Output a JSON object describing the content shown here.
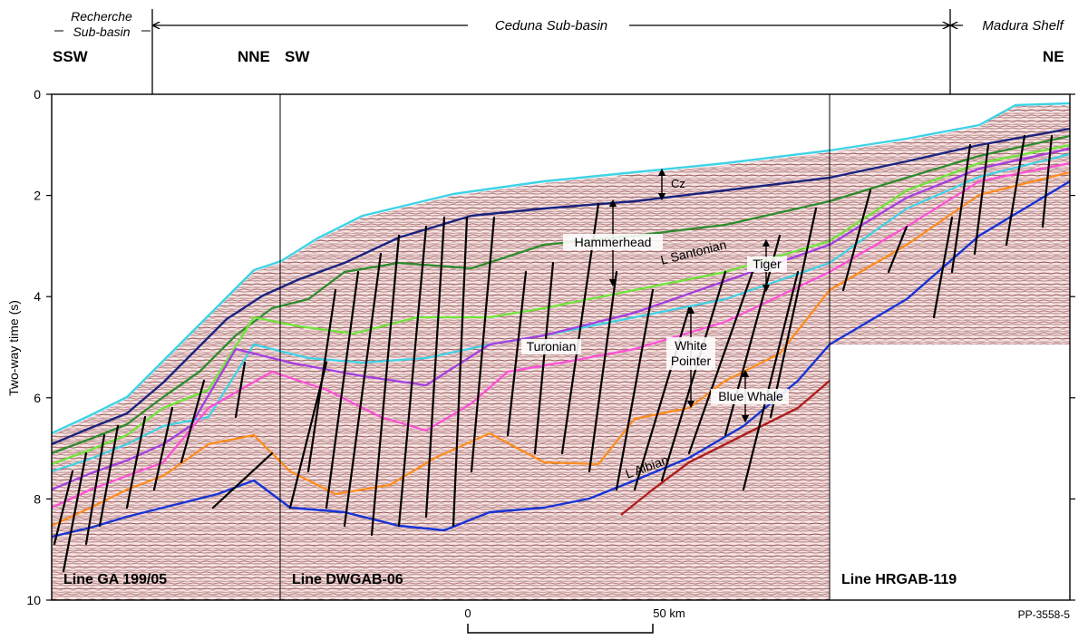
{
  "header": {
    "segments": [
      {
        "line1": "Recherche",
        "line2": "Sub-basin"
      },
      {
        "line1": "Ceduna Sub-basin",
        "line2": ""
      },
      {
        "line1": "Madura Shelf",
        "line2": ""
      }
    ],
    "directions": [
      "SSW",
      "NNE",
      "SW",
      "NE"
    ]
  },
  "axis": {
    "label": "Two-way time (s)",
    "ticks": [
      "0",
      "2",
      "4",
      "6",
      "8",
      "10"
    ]
  },
  "lines": [
    "Line GA 199/05",
    "Line DWGAB-06",
    "Line HRGAB-119"
  ],
  "horizons": [
    {
      "name": "Cz",
      "color": "#3ed3e6"
    },
    {
      "name": "Hammerhead",
      "color": "#1a237e"
    },
    {
      "name": "L Santonian",
      "color": "#2e8b2e"
    },
    {
      "name": "Tiger",
      "color": "#7dff3c"
    },
    {
      "name": "Turonian",
      "color": "#a43fe0"
    },
    {
      "name": "White Pointer",
      "color": "#ff4fd8"
    },
    {
      "name": "Blue Whale",
      "color": "#ff8c1a"
    },
    {
      "name": "L Albian",
      "color": "#1733d6"
    }
  ],
  "labels": {
    "cz": "Cz",
    "hammerhead": "Hammerhead",
    "lsantonian": "L Santonian",
    "tiger": "Tiger",
    "turonian": "Turonian",
    "whitepointer1": "White",
    "whitepointer2": "Pointer",
    "bluewhale": "Blue Whale",
    "lalbian": "L Albian"
  },
  "colors": {
    "basement": "#b01e1e",
    "faults": "#000000",
    "seismic_bg": "#f5e6e6",
    "seismic_dark": "#7a2b2b"
  },
  "scalebar": {
    "start": "0",
    "end": "50 km"
  },
  "figure_id": "PP-3558-5"
}
